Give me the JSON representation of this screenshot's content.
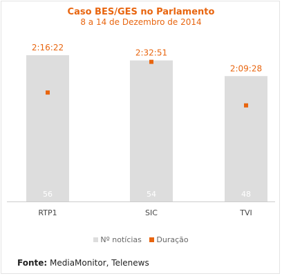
{
  "chart_data": {
    "type": "bar",
    "title": "Caso BES/GES no Parlamento",
    "subtitle": "8 a 14 de Dezembro de 2014",
    "categories": [
      "RTP1",
      "SIC",
      "TVI"
    ],
    "series": [
      {
        "name": "Nº notícias",
        "type": "bar",
        "values": [
          56,
          54,
          48
        ],
        "labels": [
          "56",
          "54",
          "48"
        ],
        "color": "#dddddd"
      },
      {
        "name": "Duração",
        "type": "scatter",
        "values": [
          "2:16:22",
          "2:32:51",
          "2:09:28"
        ],
        "labels": [
          "2:16:22",
          "2:32:51",
          "2:09:28"
        ],
        "color": "#e8650f"
      }
    ],
    "legend_position": "bottom"
  },
  "source": {
    "label": "Fonte:",
    "text": "MediaMonitor, Telenews"
  }
}
